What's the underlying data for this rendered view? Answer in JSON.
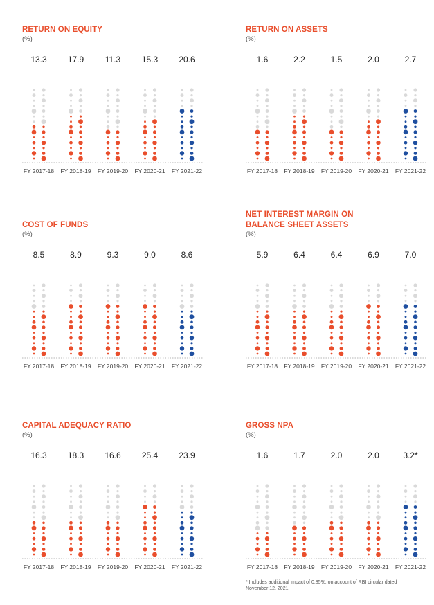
{
  "colors": {
    "title": "#e94e2c",
    "past": "#e94e2c",
    "current": "#1f4fa0",
    "empty": "#d9d9d9"
  },
  "footnote": "* Includes additional impact of 0.85%, on account of RBI circular dated November 12, 2021",
  "chart_data": [
    {
      "type": "dot-column",
      "title": "RETURN ON EQUITY",
      "unit": "(%)",
      "categories": [
        "FY 2017-18",
        "FY 2018-19",
        "FY 2019-20",
        "FY 2020-21",
        "FY 2021-22"
      ],
      "values": [
        13.3,
        17.9,
        11.3,
        15.3,
        20.6
      ],
      "value_labels": [
        "13.3",
        "17.9",
        "11.3",
        "15.3",
        "20.6"
      ],
      "ylim": [
        0,
        28
      ]
    },
    {
      "type": "dot-column",
      "title": "RETURN ON ASSETS",
      "unit": "(%)",
      "categories": [
        "FY 2017-18",
        "FY 2018-19",
        "FY 2019-20",
        "FY 2020-21",
        "FY 2021-22"
      ],
      "values": [
        1.6,
        2.2,
        1.5,
        2.0,
        2.7
      ],
      "value_labels": [
        "1.6",
        "2.2",
        "1.5",
        "2.0",
        "2.7"
      ],
      "ylim": [
        0,
        3.6
      ]
    },
    {
      "type": "dot-column",
      "title": "COST OF FUNDS",
      "unit": "(%)",
      "categories": [
        "FY 2017-18",
        "FY 2018-19",
        "FY 2019-20",
        "FY 2020-21",
        "FY 2021-22"
      ],
      "values": [
        8.5,
        8.9,
        9.3,
        9.0,
        8.6
      ],
      "value_labels": [
        "8.5",
        "8.9",
        "9.3",
        "9.0",
        "8.6"
      ],
      "ylim": [
        0,
        13
      ]
    },
    {
      "type": "dot-column",
      "title": "NET INTEREST MARGIN ON BALANCE SHEET ASSETS",
      "title_lines": [
        "NET INTEREST MARGIN ON",
        "BALANCE SHEET ASSETS"
      ],
      "unit": "(%)",
      "categories": [
        "FY 2017-18",
        "FY 2018-19",
        "FY 2019-20",
        "FY 2020-21",
        "FY 2021-22"
      ],
      "values": [
        5.9,
        6.4,
        6.4,
        6.9,
        7.0
      ],
      "value_labels": [
        "5.9",
        "6.4",
        "6.4",
        "6.9",
        "7.0"
      ],
      "ylim": [
        0,
        9.5
      ]
    },
    {
      "type": "dot-column",
      "title": "CAPITAL ADEQUACY RATIO",
      "unit": "(%)",
      "categories": [
        "FY 2017-18",
        "FY 2018-19",
        "FY 2019-20",
        "FY 2020-21",
        "FY 2021-22"
      ],
      "values": [
        16.3,
        18.3,
        16.6,
        25.4,
        23.9
      ],
      "value_labels": [
        "16.3",
        "18.3",
        "16.6",
        "25.4",
        "23.9"
      ],
      "ylim": [
        0,
        36
      ]
    },
    {
      "type": "dot-column",
      "title": "GROSS NPA",
      "unit": "(%)",
      "categories": [
        "FY 2017-18",
        "FY 2018-19",
        "FY 2019-20",
        "FY 2020-21",
        "FY 2021-22"
      ],
      "values": [
        1.6,
        1.7,
        2.0,
        2.0,
        3.2
      ],
      "value_labels": [
        "1.6",
        "1.7",
        "2.0",
        "2.0",
        "3.2*"
      ],
      "ylim": [
        0,
        4.3
      ]
    }
  ]
}
